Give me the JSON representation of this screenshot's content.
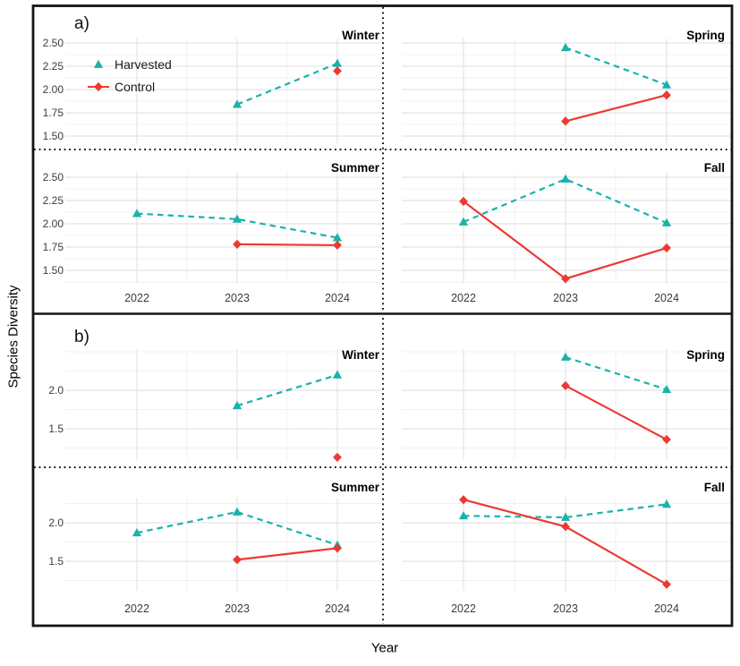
{
  "chart_data": {
    "type": "line",
    "xlabel": "Year",
    "ylabel": "Species Diversity",
    "x_categories": [
      "2022",
      "2023",
      "2024"
    ],
    "legend": {
      "position": "inside-top-left-of-panel-a-winter",
      "items": [
        "Harvested",
        "Control"
      ]
    },
    "series_styles": [
      {
        "name": "Harvested",
        "color": "#18B3AB",
        "line": "dashed",
        "marker": "triangle"
      },
      {
        "name": "Control",
        "color": "#EA3B33",
        "line": "solid",
        "marker": "diamond"
      }
    ],
    "grid": {
      "major_color": "#E4E4E4",
      "minor_color": "#F1F1F1",
      "background": "#FFFFFF",
      "border_color": "#141414"
    },
    "panels": [
      {
        "label": "a)",
        "ytick_labels": [
          "2.50",
          "2.25",
          "2.00",
          "1.75",
          "1.50"
        ],
        "ytick_values": [
          2.5,
          2.25,
          2.0,
          1.75,
          1.5
        ],
        "facets": [
          {
            "season": "Winter",
            "col": 0,
            "row": 0,
            "series": [
              {
                "name": "Harvested",
                "points": [
                  [
                    "2023",
                    1.84
                  ],
                  [
                    "2024",
                    2.28
                  ]
                ]
              },
              {
                "name": "Control",
                "points": [
                  [
                    "2024",
                    2.2
                  ]
                ]
              }
            ]
          },
          {
            "season": "Spring",
            "col": 1,
            "row": 0,
            "series": [
              {
                "name": "Harvested",
                "points": [
                  [
                    "2023",
                    2.45
                  ],
                  [
                    "2024",
                    2.05
                  ]
                ]
              },
              {
                "name": "Control",
                "points": [
                  [
                    "2023",
                    1.66
                  ],
                  [
                    "2024",
                    1.94
                  ]
                ]
              }
            ]
          },
          {
            "season": "Summer",
            "col": 0,
            "row": 1,
            "series": [
              {
                "name": "Harvested",
                "points": [
                  [
                    "2022",
                    2.11
                  ],
                  [
                    "2023",
                    2.05
                  ],
                  [
                    "2024",
                    1.85
                  ]
                ]
              },
              {
                "name": "Control",
                "points": [
                  [
                    "2023",
                    1.78
                  ],
                  [
                    "2024",
                    1.77
                  ]
                ]
              }
            ]
          },
          {
            "season": "Fall",
            "col": 1,
            "row": 1,
            "series": [
              {
                "name": "Harvested",
                "points": [
                  [
                    "2022",
                    2.02
                  ],
                  [
                    "2023",
                    2.48
                  ],
                  [
                    "2024",
                    2.01
                  ]
                ]
              },
              {
                "name": "Control",
                "points": [
                  [
                    "2022",
                    2.24
                  ],
                  [
                    "2023",
                    1.41
                  ],
                  [
                    "2024",
                    1.74
                  ]
                ]
              }
            ]
          }
        ]
      },
      {
        "label": "b)",
        "ytick_labels": [
          "2.0",
          "1.5"
        ],
        "ytick_values": [
          2.0,
          1.5
        ],
        "facets": [
          {
            "season": "Winter",
            "col": 0,
            "row": 0,
            "series": [
              {
                "name": "Harvested",
                "points": [
                  [
                    "2023",
                    1.8
                  ],
                  [
                    "2024",
                    2.2
                  ]
                ]
              },
              {
                "name": "Control",
                "points": [
                  [
                    "2024",
                    1.13
                  ]
                ]
              }
            ]
          },
          {
            "season": "Spring",
            "col": 1,
            "row": 0,
            "series": [
              {
                "name": "Harvested",
                "points": [
                  [
                    "2023",
                    2.43
                  ],
                  [
                    "2024",
                    2.01
                  ]
                ]
              },
              {
                "name": "Control",
                "points": [
                  [
                    "2023",
                    2.06
                  ],
                  [
                    "2024",
                    1.36
                  ]
                ]
              }
            ]
          },
          {
            "season": "Summer",
            "col": 0,
            "row": 1,
            "series": [
              {
                "name": "Harvested",
                "points": [
                  [
                    "2022",
                    1.87
                  ],
                  [
                    "2023",
                    2.14
                  ],
                  [
                    "2024",
                    1.71
                  ]
                ]
              },
              {
                "name": "Control",
                "points": [
                  [
                    "2023",
                    1.52
                  ],
                  [
                    "2024",
                    1.67
                  ]
                ]
              }
            ]
          },
          {
            "season": "Fall",
            "col": 1,
            "row": 1,
            "series": [
              {
                "name": "Harvested",
                "points": [
                  [
                    "2022",
                    2.09
                  ],
                  [
                    "2023",
                    2.07
                  ],
                  [
                    "2024",
                    2.24
                  ]
                ]
              },
              {
                "name": "Control",
                "points": [
                  [
                    "2022",
                    2.3
                  ],
                  [
                    "2023",
                    1.95
                  ],
                  [
                    "2024",
                    1.2
                  ]
                ]
              }
            ]
          }
        ]
      }
    ]
  }
}
